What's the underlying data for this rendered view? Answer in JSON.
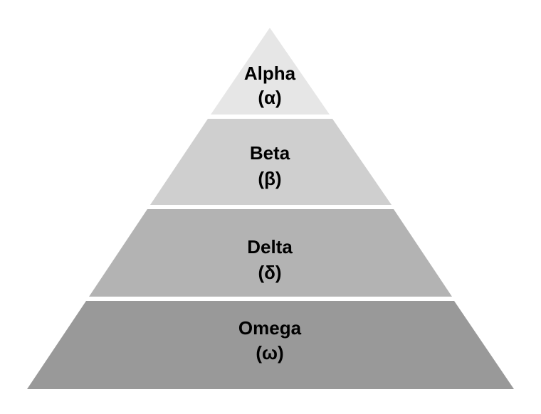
{
  "diagram": {
    "type": "pyramid",
    "tiers": [
      {
        "name": "Alpha",
        "symbol": "(α)",
        "color": "#e6e6e6"
      },
      {
        "name": "Beta",
        "symbol": "(β)",
        "color": "#cfcfcf"
      },
      {
        "name": "Delta",
        "symbol": "(δ)",
        "color": "#b3b3b3"
      },
      {
        "name": "Omega",
        "symbol": "(ω)",
        "color": "#999999"
      }
    ]
  }
}
